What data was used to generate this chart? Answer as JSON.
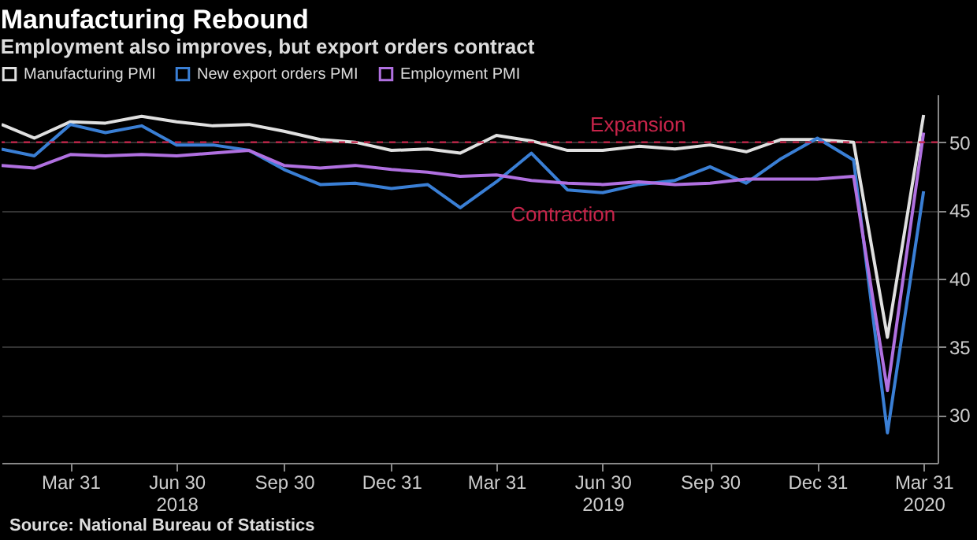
{
  "chart_data": {
    "type": "line",
    "title": "Manufacturing Rebound",
    "subtitle": "Employment also improves, but export orders contract",
    "x": [
      "2018-01-31",
      "2018-02-28",
      "2018-03-31",
      "2018-04-30",
      "2018-05-31",
      "2018-06-30",
      "2018-07-31",
      "2018-08-31",
      "2018-09-30",
      "2018-10-31",
      "2018-11-30",
      "2018-12-31",
      "2019-01-31",
      "2019-02-28",
      "2019-03-31",
      "2019-04-30",
      "2019-05-31",
      "2019-06-30",
      "2019-07-31",
      "2019-08-31",
      "2019-09-30",
      "2019-10-31",
      "2019-11-30",
      "2019-12-31",
      "2020-01-31",
      "2020-02-29",
      "2020-03-31"
    ],
    "series": [
      {
        "name": "Manufacturing PMI",
        "color": "#e0e0e0",
        "values": [
          51.3,
          50.3,
          51.5,
          51.4,
          51.9,
          51.5,
          51.2,
          51.3,
          50.8,
          50.2,
          50.0,
          49.4,
          49.5,
          49.2,
          50.5,
          50.1,
          49.4,
          49.4,
          49.7,
          49.5,
          49.8,
          49.3,
          50.2,
          50.2,
          50.0,
          35.7,
          52.0
        ]
      },
      {
        "name": "New export orders PMI",
        "color": "#3a7fd5",
        "values": [
          49.5,
          49.0,
          51.3,
          50.7,
          51.2,
          49.8,
          49.8,
          49.4,
          48.0,
          46.9,
          47.0,
          46.6,
          46.9,
          45.2,
          47.1,
          49.2,
          46.5,
          46.3,
          46.9,
          47.2,
          48.2,
          47.0,
          48.8,
          50.3,
          48.7,
          28.7,
          46.4
        ]
      },
      {
        "name": "Employment PMI",
        "color": "#b070e0",
        "values": [
          48.3,
          48.1,
          49.1,
          49.0,
          49.1,
          49.0,
          49.2,
          49.4,
          48.3,
          48.1,
          48.3,
          48.0,
          47.8,
          47.5,
          47.6,
          47.2,
          47.0,
          46.9,
          47.1,
          46.9,
          47.0,
          47.3,
          47.3,
          47.3,
          47.5,
          31.8,
          50.7
        ]
      }
    ],
    "xlim": [
      "2018-01-31",
      "2020-04-12"
    ],
    "xticks": [
      {
        "value": "2018-03-31",
        "label": "Mar 31"
      },
      {
        "value": "2018-06-30",
        "label": "Jun 30\n2018"
      },
      {
        "value": "2018-09-30",
        "label": "Sep 30"
      },
      {
        "value": "2018-12-31",
        "label": "Dec 31"
      },
      {
        "value": "2019-03-31",
        "label": "Mar 31"
      },
      {
        "value": "2019-06-30",
        "label": "Jun 30\n2019"
      },
      {
        "value": "2019-09-30",
        "label": "Sep 30"
      },
      {
        "value": "2019-12-31",
        "label": "Dec 31"
      },
      {
        "value": "2020-03-31",
        "label": "Mar 31\n2020"
      }
    ],
    "ylim": [
      26.5,
      53.5
    ],
    "yticks": [
      30,
      35,
      40,
      45,
      50
    ],
    "grid": "y",
    "legend": "top left",
    "ref_lines": [
      {
        "axis": "y",
        "value": 50,
        "label": "Expansion",
        "color": "#c8244a",
        "line_style": "dashed"
      }
    ],
    "annotations": [
      "Contraction",
      "Source: National Bureau of Statistics"
    ]
  }
}
